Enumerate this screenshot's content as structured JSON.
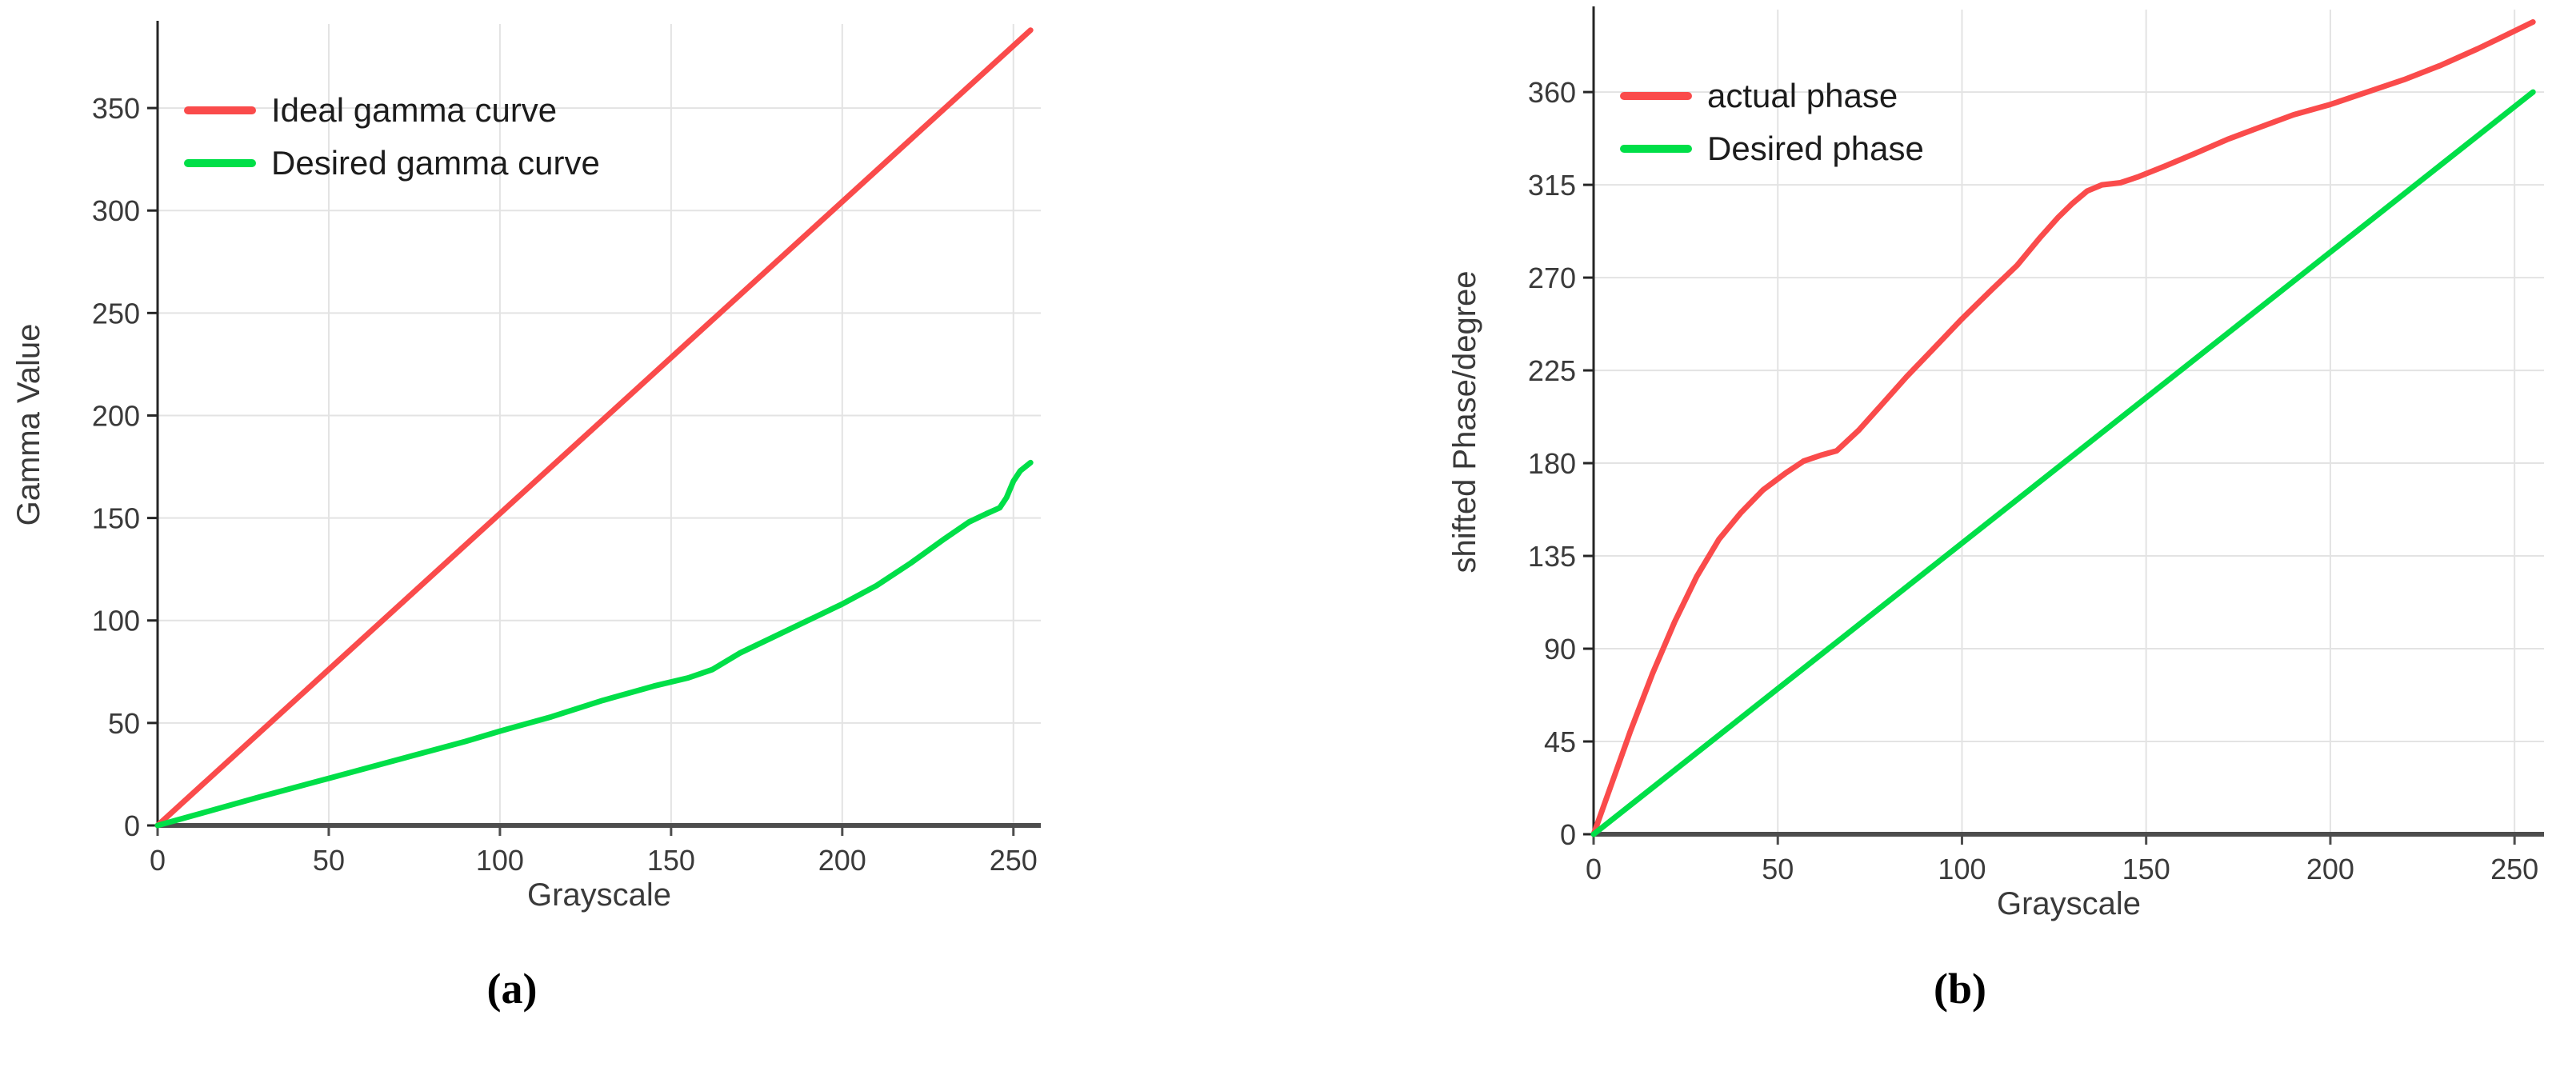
{
  "figure": {
    "background": "#ffffff",
    "captions": {
      "a": "(a)",
      "b": "(b)"
    }
  },
  "chart_data": [
    {
      "id": "chart-a",
      "type": "line",
      "title": "",
      "xlabel": "Grayscale",
      "ylabel": "Gamma Value",
      "xlim": [
        0,
        258
      ],
      "ylim": [
        0,
        391
      ],
      "xticks": [
        0,
        50,
        100,
        150,
        200,
        250
      ],
      "yticks": [
        0,
        50,
        100,
        150,
        200,
        250,
        300,
        350
      ],
      "grid": true,
      "legend_position": "top-left",
      "style": {
        "grid_color": "#e3e3e3",
        "x_axis_color": "#4d4d4d",
        "y_axis_color": "#262626",
        "text_color": "#3a3a3a"
      },
      "series": [
        {
          "name": "Ideal gamma curve",
          "color": "#fa4b4b",
          "points": [
            [
              0,
              0
            ],
            [
              255,
              388
            ]
          ]
        },
        {
          "name": "Desired gamma curve",
          "color": "#00df48",
          "points": [
            [
              0,
              0
            ],
            [
              15,
              7
            ],
            [
              30,
              14
            ],
            [
              50,
              23
            ],
            [
              70,
              32
            ],
            [
              90,
              41
            ],
            [
              100,
              46
            ],
            [
              115,
              53
            ],
            [
              130,
              61
            ],
            [
              145,
              68
            ],
            [
              155,
              72
            ],
            [
              162,
              76
            ],
            [
              170,
              84
            ],
            [
              180,
              92
            ],
            [
              190,
              100
            ],
            [
              200,
              108
            ],
            [
              210,
              117
            ],
            [
              220,
              128
            ],
            [
              230,
              140
            ],
            [
              237,
              148
            ],
            [
              242,
              152
            ],
            [
              246,
              155
            ],
            [
              248,
              160
            ],
            [
              250,
              168
            ],
            [
              252,
              173
            ],
            [
              255,
              177
            ]
          ]
        }
      ]
    },
    {
      "id": "chart-b",
      "type": "line",
      "title": "",
      "xlabel": "Grayscale",
      "ylabel": "shifted Phase/degree",
      "xlim": [
        0,
        258
      ],
      "ylim": [
        0,
        400
      ],
      "xticks": [
        0,
        50,
        100,
        150,
        200,
        250
      ],
      "yticks": [
        0,
        45,
        90,
        135,
        180,
        225,
        270,
        315,
        360
      ],
      "grid": true,
      "legend_position": "top-left",
      "style": {
        "grid_color": "#e3e3e3",
        "x_axis_color": "#4d4d4d",
        "y_axis_color": "#262626",
        "text_color": "#3a3a3a"
      },
      "series": [
        {
          "name": "actual phase",
          "color": "#fa4b4b",
          "points": [
            [
              0,
              0
            ],
            [
              4,
              20
            ],
            [
              10,
              50
            ],
            [
              16,
              78
            ],
            [
              22,
              103
            ],
            [
              28,
              125
            ],
            [
              34,
              143
            ],
            [
              40,
              156
            ],
            [
              46,
              167
            ],
            [
              52,
              175
            ],
            [
              57,
              181
            ],
            [
              62,
              184
            ],
            [
              66,
              186
            ],
            [
              72,
              196
            ],
            [
              78,
              208
            ],
            [
              85,
              222
            ],
            [
              92,
              235
            ],
            [
              100,
              250
            ],
            [
              108,
              264
            ],
            [
              115,
              276
            ],
            [
              121,
              289
            ],
            [
              126,
              299
            ],
            [
              130,
              306
            ],
            [
              134,
              312
            ],
            [
              138,
              315
            ],
            [
              143,
              316
            ],
            [
              148,
              319
            ],
            [
              155,
              324
            ],
            [
              163,
              330
            ],
            [
              172,
              337
            ],
            [
              181,
              343
            ],
            [
              190,
              349
            ],
            [
              200,
              354
            ],
            [
              210,
              360
            ],
            [
              220,
              366
            ],
            [
              230,
              373
            ],
            [
              240,
              381
            ],
            [
              247,
              387
            ],
            [
              255,
              394
            ]
          ]
        },
        {
          "name": "Desired phase",
          "color": "#00df48",
          "points": [
            [
              0,
              0
            ],
            [
              255,
              360
            ]
          ]
        }
      ]
    }
  ]
}
